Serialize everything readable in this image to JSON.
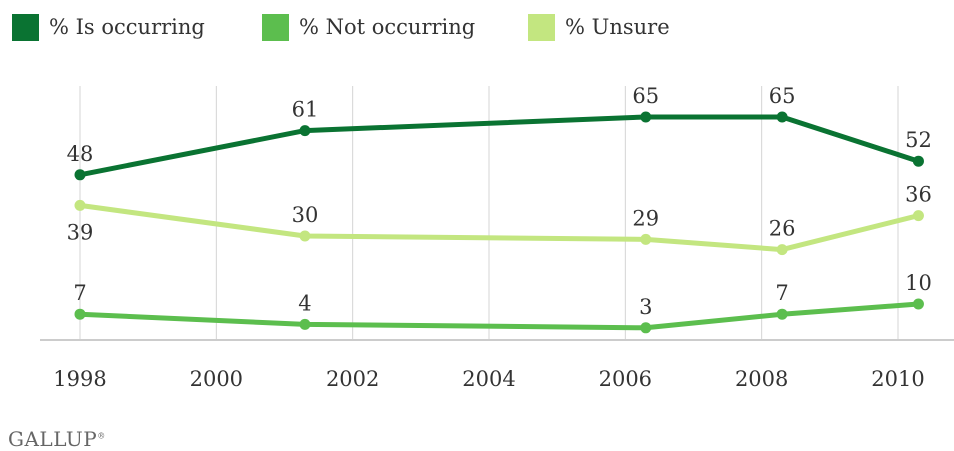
{
  "chart_data": {
    "type": "line",
    "x": [
      1998,
      2001.3,
      2006.3,
      2008.3,
      2010.3
    ],
    "xticks": [
      "1998",
      "2000",
      "2002",
      "2004",
      "2006",
      "2008",
      "2010"
    ],
    "xlim": [
      1998,
      2010
    ],
    "ylim": [
      0,
      70
    ],
    "grid": "vertical",
    "legend_position": "top-left",
    "series": [
      {
        "name": "% Is occurring",
        "color": "#0a7332",
        "values": [
          48,
          61,
          65,
          65,
          52
        ]
      },
      {
        "name": "% Not occurring",
        "color": "#5cbe4e",
        "values": [
          7,
          4,
          3,
          7,
          10
        ]
      },
      {
        "name": "% Unsure",
        "color": "#c3e680",
        "values": [
          39,
          30,
          29,
          26,
          36
        ]
      }
    ]
  },
  "footer": {
    "brand": "GALLUP",
    "brand_mark": "®"
  }
}
